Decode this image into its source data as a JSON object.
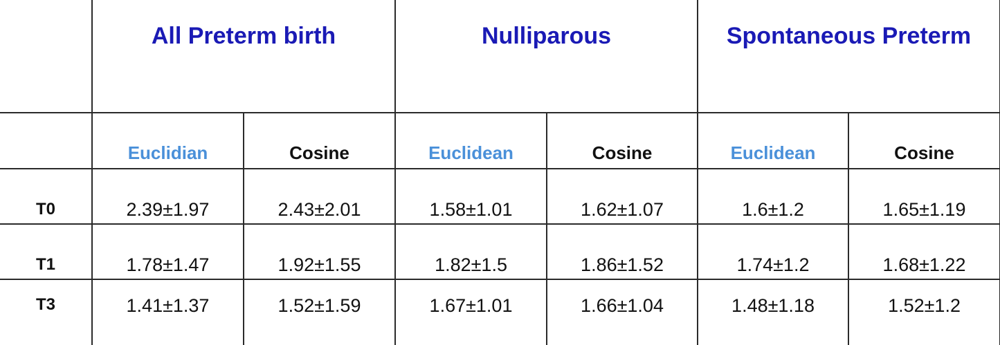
{
  "table": {
    "groups": [
      "All Preterm birth",
      "Nulliparous",
      "Spontaneous Preterm"
    ],
    "metrics": [
      "Euclidian",
      "Cosine",
      "Euclidean",
      "Cosine",
      "Euclidean",
      "Cosine"
    ],
    "metric_colors": [
      "#4a90d9",
      "#111111",
      "#4a90d9",
      "#111111",
      "#4a90d9",
      "#111111"
    ],
    "group_color": "#1a1ab5",
    "rows": [
      {
        "label": "T0",
        "values": [
          "2.39±1.97",
          "2.43±2.01",
          "1.58±1.01",
          "1.62±1.07",
          "1.6±1.2",
          "1.65±1.19"
        ]
      },
      {
        "label": "T1",
        "values": [
          "1.78±1.47",
          "1.92±1.55",
          "1.82±1.5",
          "1.86±1.52",
          "1.74±1.2",
          "1.68±1.22"
        ]
      },
      {
        "label": "T3",
        "values": [
          "1.41±1.37",
          "1.52±1.59",
          "1.67±1.01",
          "1.66±1.04",
          "1.48±1.18",
          "1.52±1.2"
        ]
      }
    ]
  }
}
